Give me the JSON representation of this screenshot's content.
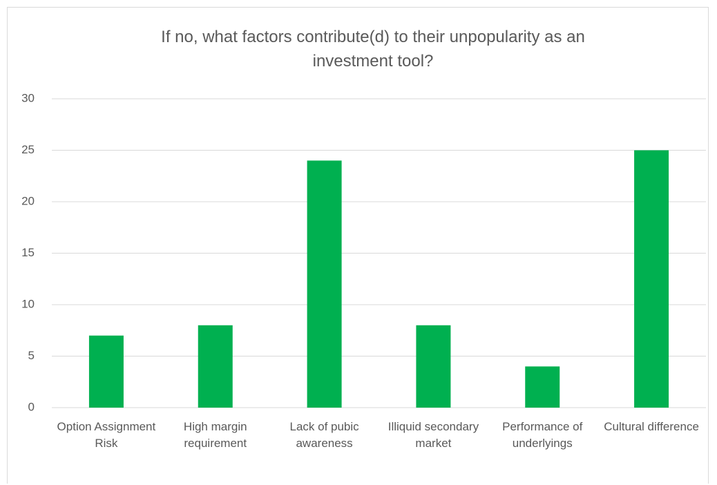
{
  "chart_data": {
    "type": "bar",
    "title": "If no, what factors contribute(d) to their unpopularity as an investment tool?",
    "categories": [
      "Option Assignment Risk",
      "High margin requirement",
      "Lack of pubic awareness",
      "Illiquid secondary market",
      "Performance of underlyings",
      "Cultural difference"
    ],
    "values": [
      7,
      8,
      24,
      8,
      4,
      25
    ],
    "color": "#00b050",
    "ylim": [
      0,
      30
    ],
    "yticks": [
      0,
      5,
      10,
      15,
      20,
      25,
      30
    ],
    "grid": true
  }
}
